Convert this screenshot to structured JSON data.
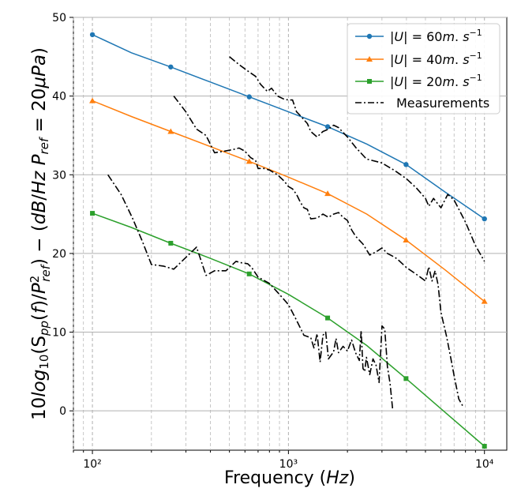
{
  "chart_data": {
    "type": "line",
    "xscale": "log",
    "xlabel": "Frequency (Hz)",
    "ylabel": "10log10(Spp(f)/Pref²) − (dB/Hz   Pref = 20μPa)",
    "xlim": [
      80,
      13000
    ],
    "ylim": [
      -5,
      50
    ],
    "grid": "on (major and minor vertical dashed, major horizontal solid)",
    "legend_position": "top-right",
    "x_ticks": [
      "10²",
      "10³",
      "10⁴"
    ],
    "y_ticks": [
      "0",
      "10",
      "20",
      "30",
      "40",
      "50"
    ],
    "series": [
      {
        "name": "|U| = 60m.s⁻¹",
        "color": "#1f77b4",
        "marker": "circle",
        "x": [
          100,
          158,
          251,
          398,
          631,
          1000,
          1585,
          2512,
          3981,
          6310,
          10000
        ],
        "y": [
          47.8,
          45.5,
          43.7,
          41.8,
          39.9,
          38.0,
          36.1,
          33.9,
          31.3,
          27.8,
          24.4
        ],
        "marker_points": [
          [
            100,
            47.8
          ],
          [
            251,
            43.7
          ],
          [
            631,
            39.9
          ],
          [
            1585,
            36.1
          ],
          [
            3981,
            31.3
          ],
          [
            10000,
            24.4
          ]
        ]
      },
      {
        "name": "|U| = 40m.s⁻¹",
        "color": "#ff7f0e",
        "marker": "triangle",
        "x": [
          100,
          158,
          251,
          398,
          631,
          1000,
          1585,
          2512,
          3981,
          6310,
          10000
        ],
        "y": [
          39.4,
          37.4,
          35.5,
          33.6,
          31.7,
          29.7,
          27.6,
          25.0,
          21.7,
          17.9,
          13.9
        ],
        "marker_points": [
          [
            100,
            39.4
          ],
          [
            251,
            35.5
          ],
          [
            631,
            31.7
          ],
          [
            1585,
            27.6
          ],
          [
            3981,
            21.7
          ],
          [
            10000,
            13.9
          ]
        ]
      },
      {
        "name": "|U| = 20m.s⁻¹",
        "color": "#2ca02c",
        "marker": "square",
        "x": [
          100,
          158,
          251,
          398,
          631,
          1000,
          1585,
          2512,
          3981,
          6310,
          10000
        ],
        "y": [
          25.1,
          23.3,
          21.3,
          19.4,
          17.4,
          14.8,
          11.8,
          8.3,
          4.1,
          -0.2,
          -4.5
        ],
        "marker_points": [
          [
            100,
            25.1
          ],
          [
            251,
            21.3
          ],
          [
            631,
            17.4
          ],
          [
            1585,
            11.8
          ],
          [
            3981,
            4.1
          ],
          [
            10000,
            -4.5
          ]
        ]
      },
      {
        "name": "Measurements",
        "color": "#000000",
        "style": "dash-dot",
        "segments": [
          {
            "x": [
              500,
              560,
              620,
              680,
              720,
              780,
              820,
              880,
              950,
              1000,
              1050,
              1100,
              1150,
              1250,
              1300,
              1400,
              1500,
              1600,
              1700,
              1800,
              2000,
              2200,
              2500,
              3000,
              3500,
              4000,
              4500,
              5000,
              5200,
              5500,
              6000,
              6500,
              7000,
              8000,
              9000,
              10000
            ],
            "y": [
              45.0,
              44.0,
              43.2,
              42.5,
              41.5,
              40.6,
              41.0,
              40.0,
              39.6,
              39.5,
              39.5,
              38.0,
              37.5,
              36.5,
              35.5,
              34.8,
              35.5,
              35.8,
              36.3,
              36.0,
              34.8,
              33.5,
              32.0,
              31.5,
              30.5,
              29.5,
              28.3,
              27.0,
              26.0,
              27.0,
              25.8,
              27.5,
              26.8,
              24.0,
              21.0,
              19.0
            ]
          },
          {
            "x": [
              260,
              300,
              340,
              380,
              420,
              470,
              520,
              560,
              600,
              640,
              680,
              700,
              750,
              800,
              880,
              950,
              1000,
              1050,
              1100,
              1150,
              1200,
              1250,
              1300,
              1400,
              1500,
              1600,
              1700,
              1800,
              1900,
              2000,
              2100,
              2200,
              2400,
              2600,
              2800,
              3000,
              3200,
              3500,
              3700,
              4000,
              4400,
              4700,
              5000,
              5200,
              5400,
              5600,
              5800,
              6000,
              6400,
              6700,
              7000,
              7400,
              7800
            ],
            "y": [
              40.0,
              38.0,
              35.8,
              35.0,
              32.8,
              33.0,
              33.2,
              33.4,
              33.0,
              32.2,
              31.8,
              30.8,
              30.8,
              30.6,
              30.0,
              29.2,
              28.5,
              28.2,
              27.5,
              26.5,
              25.8,
              25.6,
              24.4,
              24.5,
              25.0,
              24.6,
              25.0,
              25.2,
              24.6,
              24.2,
              23.0,
              22.2,
              21.2,
              19.8,
              20.2,
              20.7,
              20.0,
              19.5,
              19.0,
              18.2,
              17.5,
              17.0,
              16.5,
              18.3,
              16.5,
              17.8,
              16.0,
              12.5,
              9.5,
              7.0,
              4.5,
              1.5,
              0.5
            ]
          },
          {
            "x": [
              120,
              140,
              160,
              180,
              200,
              230,
              260,
              300,
              340,
              380,
              420,
              480,
              540,
              580,
              620,
              650,
              700,
              800,
              900,
              1000,
              1100,
              1200,
              1300,
              1350,
              1400,
              1450,
              1500,
              1550,
              1600,
              1700,
              1750,
              1800,
              1900,
              2000,
              2100,
              2200,
              2300,
              2350,
              2400,
              2450,
              2500,
              2600,
              2700,
              2800,
              2900,
              3000,
              3100,
              3200,
              3300,
              3400
            ],
            "y": [
              30.0,
              27.5,
              24.5,
              21.5,
              18.6,
              18.4,
              18.0,
              19.5,
              20.8,
              17.2,
              17.8,
              17.8,
              19.0,
              18.8,
              18.7,
              18.2,
              17.0,
              16.2,
              14.8,
              13.5,
              11.5,
              9.6,
              9.3,
              8.0,
              9.8,
              6.2,
              9.6,
              10.0,
              6.6,
              7.5,
              9.2,
              7.4,
              8.2,
              7.6,
              9.0,
              7.4,
              6.4,
              10.2,
              5.4,
              5.0,
              6.8,
              4.6,
              6.6,
              5.8,
              3.6,
              10.8,
              10.4,
              5.6,
              3.5,
              0.2
            ]
          }
        ]
      }
    ]
  }
}
